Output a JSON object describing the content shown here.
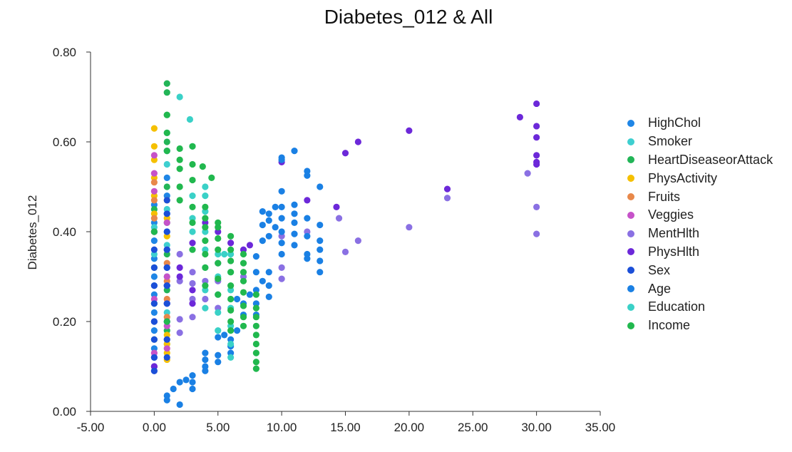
{
  "chart_data": {
    "type": "scatter",
    "title": "Diabetes_012 & All",
    "xlabel": "",
    "ylabel": "Diabetes_012",
    "xlim": [
      -5,
      35
    ],
    "ylim": [
      0,
      0.8
    ],
    "x_ticks": [
      "-5.00",
      "0.00",
      "5.00",
      "10.00",
      "15.00",
      "20.00",
      "25.00",
      "30.00",
      "35.00"
    ],
    "y_ticks": [
      "0.00",
      "0.20",
      "0.40",
      "0.60",
      "0.80"
    ],
    "legend_position": "right",
    "series": [
      {
        "name": "HighChol",
        "color": "#1f86e6",
        "points": [
          [
            0,
            0.1
          ],
          [
            0,
            0.14
          ],
          [
            0,
            0.18
          ],
          [
            0,
            0.22
          ],
          [
            0,
            0.26
          ],
          [
            0,
            0.3
          ],
          [
            0,
            0.34
          ],
          [
            0,
            0.38
          ],
          [
            0,
            0.42
          ],
          [
            0,
            0.46
          ],
          [
            1,
            0.2
          ],
          [
            1,
            0.24
          ],
          [
            1,
            0.28
          ],
          [
            1,
            0.32
          ],
          [
            1,
            0.36
          ],
          [
            1,
            0.4
          ],
          [
            1,
            0.44
          ],
          [
            1,
            0.48
          ],
          [
            1,
            0.52
          ],
          [
            1,
            0.58
          ]
        ]
      },
      {
        "name": "Smoker",
        "color": "#3ecfd0",
        "points": [
          [
            0,
            0.12
          ],
          [
            0,
            0.2
          ],
          [
            0,
            0.28
          ],
          [
            0,
            0.35
          ],
          [
            0,
            0.41
          ],
          [
            1,
            0.15
          ],
          [
            1,
            0.22
          ],
          [
            1,
            0.3
          ],
          [
            1,
            0.37
          ],
          [
            1,
            0.45
          ],
          [
            1,
            0.55
          ],
          [
            1,
            0.62
          ]
        ]
      },
      {
        "name": "HeartDiseaseorAttack",
        "color": "#22b557",
        "points": [
          [
            0,
            0.16
          ],
          [
            0,
            0.24
          ],
          [
            0,
            0.32
          ],
          [
            0,
            0.4
          ],
          [
            0,
            0.45
          ],
          [
            1,
            0.18
          ],
          [
            1,
            0.27
          ],
          [
            1,
            0.35
          ],
          [
            1,
            0.42
          ],
          [
            1,
            0.5
          ],
          [
            1,
            0.6
          ],
          [
            1,
            0.66
          ],
          [
            1,
            0.71
          ],
          [
            1,
            0.73
          ]
        ]
      },
      {
        "name": "PhysActivity",
        "color": "#f5c000",
        "points": [
          [
            0,
            0.4
          ],
          [
            0,
            0.44
          ],
          [
            0,
            0.48
          ],
          [
            0,
            0.52
          ],
          [
            0,
            0.56
          ],
          [
            0,
            0.59
          ],
          [
            0,
            0.63
          ],
          [
            1,
            0.115
          ],
          [
            1,
            0.13
          ],
          [
            1,
            0.15
          ],
          [
            1,
            0.17
          ],
          [
            1,
            0.39
          ],
          [
            1,
            0.43
          ],
          [
            1,
            0.47
          ]
        ]
      },
      {
        "name": "Fruits",
        "color": "#e8884a",
        "points": [
          [
            0,
            0.43
          ],
          [
            0,
            0.47
          ],
          [
            0,
            0.51
          ],
          [
            1,
            0.21
          ],
          [
            1,
            0.25
          ],
          [
            1,
            0.29
          ],
          [
            1,
            0.33
          ]
        ]
      },
      {
        "name": "Veggies",
        "color": "#c652c9",
        "points": [
          [
            0,
            0.1
          ],
          [
            0,
            0.13
          ],
          [
            0,
            0.25
          ],
          [
            0,
            0.4
          ],
          [
            0,
            0.49
          ],
          [
            0,
            0.53
          ],
          [
            0,
            0.57
          ],
          [
            1,
            0.14
          ],
          [
            1,
            0.19
          ],
          [
            1,
            0.24
          ],
          [
            1,
            0.3
          ],
          [
            1,
            0.36
          ],
          [
            1,
            0.42
          ]
        ]
      },
      {
        "name": "MentHlth",
        "color": "#8a70e3",
        "points": [
          [
            0,
            0.09
          ],
          [
            0,
            0.12
          ],
          [
            1,
            0.16
          ],
          [
            1,
            0.24
          ],
          [
            2,
            0.175
          ],
          [
            2,
            0.205
          ],
          [
            2,
            0.29
          ],
          [
            2,
            0.35
          ],
          [
            3,
            0.21
          ],
          [
            3,
            0.25
          ],
          [
            3,
            0.285
          ],
          [
            3,
            0.31
          ],
          [
            4,
            0.25
          ],
          [
            4,
            0.29
          ],
          [
            5,
            0.23
          ],
          [
            5,
            0.29
          ],
          [
            5,
            0.33
          ],
          [
            7,
            0.3
          ],
          [
            10,
            0.295
          ],
          [
            10,
            0.32
          ],
          [
            10,
            0.39
          ],
          [
            12,
            0.4
          ],
          [
            14.5,
            0.43
          ],
          [
            15,
            0.355
          ],
          [
            16,
            0.38
          ],
          [
            20,
            0.41
          ],
          [
            23,
            0.475
          ],
          [
            29.3,
            0.53
          ],
          [
            30,
            0.395
          ],
          [
            30,
            0.455
          ]
        ]
      },
      {
        "name": "PhysHlth",
        "color": "#6c28d9",
        "points": [
          [
            0,
            0.1
          ],
          [
            0,
            0.2
          ],
          [
            1,
            0.28
          ],
          [
            1,
            0.32
          ],
          [
            2,
            0.3
          ],
          [
            2,
            0.32
          ],
          [
            3,
            0.24
          ],
          [
            3,
            0.27
          ],
          [
            3,
            0.375
          ],
          [
            4,
            0.42
          ],
          [
            5,
            0.4
          ],
          [
            6,
            0.375
          ],
          [
            7,
            0.36
          ],
          [
            7.5,
            0.37
          ],
          [
            10,
            0.555
          ],
          [
            12,
            0.47
          ],
          [
            14.3,
            0.455
          ],
          [
            15,
            0.575
          ],
          [
            16,
            0.6
          ],
          [
            20,
            0.625
          ],
          [
            23,
            0.495
          ],
          [
            28.7,
            0.655
          ],
          [
            30,
            0.55
          ],
          [
            30,
            0.555
          ],
          [
            30,
            0.57
          ],
          [
            30,
            0.61
          ],
          [
            30,
            0.635
          ],
          [
            30,
            0.685
          ]
        ]
      },
      {
        "name": "Sex",
        "color": "#1b4fd8",
        "points": [
          [
            0,
            0.09
          ],
          [
            0,
            0.12
          ],
          [
            0,
            0.16
          ],
          [
            0,
            0.2
          ],
          [
            0,
            0.24
          ],
          [
            0,
            0.28
          ],
          [
            0,
            0.32
          ],
          [
            0,
            0.36
          ],
          [
            0,
            0.4
          ],
          [
            1,
            0.12
          ],
          [
            1,
            0.16
          ],
          [
            1,
            0.2
          ],
          [
            1,
            0.24
          ],
          [
            1,
            0.28
          ],
          [
            1,
            0.32
          ],
          [
            1,
            0.36
          ],
          [
            1,
            0.4
          ],
          [
            1,
            0.44
          ],
          [
            1,
            0.47
          ]
        ]
      },
      {
        "name": "Age",
        "color": "#1a80e4",
        "points": [
          [
            1,
            0.025
          ],
          [
            1,
            0.035
          ],
          [
            1.5,
            0.05
          ],
          [
            2,
            0.015
          ],
          [
            2,
            0.065
          ],
          [
            2.5,
            0.07
          ],
          [
            3,
            0.05
          ],
          [
            3,
            0.065
          ],
          [
            3,
            0.08
          ],
          [
            4,
            0.09
          ],
          [
            4,
            0.1
          ],
          [
            4,
            0.115
          ],
          [
            4,
            0.13
          ],
          [
            5,
            0.11
          ],
          [
            5,
            0.125
          ],
          [
            5,
            0.165
          ],
          [
            5.5,
            0.17
          ],
          [
            6,
            0.13
          ],
          [
            6,
            0.145
          ],
          [
            6,
            0.16
          ],
          [
            6.5,
            0.18
          ],
          [
            6.5,
            0.25
          ],
          [
            7,
            0.215
          ],
          [
            7,
            0.24
          ],
          [
            7.5,
            0.26
          ],
          [
            8,
            0.215
          ],
          [
            8,
            0.24
          ],
          [
            8,
            0.27
          ],
          [
            8,
            0.31
          ],
          [
            8,
            0.345
          ],
          [
            8.5,
            0.29
          ],
          [
            8.5,
            0.38
          ],
          [
            8.5,
            0.415
          ],
          [
            8.5,
            0.445
          ],
          [
            9,
            0.255
          ],
          [
            9,
            0.28
          ],
          [
            9,
            0.31
          ],
          [
            9,
            0.39
          ],
          [
            9,
            0.425
          ],
          [
            9,
            0.44
          ],
          [
            9.5,
            0.41
          ],
          [
            9.5,
            0.455
          ],
          [
            10,
            0.35
          ],
          [
            10,
            0.375
          ],
          [
            10,
            0.4
          ],
          [
            10,
            0.43
          ],
          [
            10,
            0.455
          ],
          [
            10,
            0.49
          ],
          [
            10,
            0.56
          ],
          [
            10,
            0.565
          ],
          [
            11,
            0.37
          ],
          [
            11,
            0.395
          ],
          [
            11,
            0.42
          ],
          [
            11,
            0.44
          ],
          [
            11,
            0.46
          ],
          [
            11,
            0.58
          ],
          [
            12,
            0.34
          ],
          [
            12,
            0.35
          ],
          [
            12,
            0.39
          ],
          [
            12,
            0.43
          ],
          [
            12,
            0.525
          ],
          [
            12,
            0.535
          ],
          [
            13,
            0.31
          ],
          [
            13,
            0.335
          ],
          [
            13,
            0.36
          ],
          [
            13,
            0.38
          ],
          [
            13,
            0.415
          ],
          [
            13,
            0.5
          ]
        ]
      },
      {
        "name": "Education",
        "color": "#3ad1c7",
        "points": [
          [
            2,
            0.7
          ],
          [
            2.8,
            0.65
          ],
          [
            3,
            0.4
          ],
          [
            3,
            0.43
          ],
          [
            3,
            0.48
          ],
          [
            3,
            0.59
          ],
          [
            4,
            0.23
          ],
          [
            4,
            0.27
          ],
          [
            4,
            0.32
          ],
          [
            4,
            0.36
          ],
          [
            4,
            0.4
          ],
          [
            4,
            0.445
          ],
          [
            4,
            0.48
          ],
          [
            4,
            0.5
          ],
          [
            5,
            0.18
          ],
          [
            5,
            0.22
          ],
          [
            5,
            0.26
          ],
          [
            5,
            0.3
          ],
          [
            5,
            0.35
          ],
          [
            5.5,
            0.35
          ],
          [
            6,
            0.12
          ],
          [
            6,
            0.15
          ],
          [
            6,
            0.19
          ],
          [
            6,
            0.23
          ],
          [
            6,
            0.27
          ],
          [
            6,
            0.31
          ],
          [
            6,
            0.35
          ]
        ]
      },
      {
        "name": "Income",
        "color": "#21b84e",
        "points": [
          [
            0,
            0.4
          ],
          [
            1,
            0.2
          ],
          [
            1,
            0.58
          ],
          [
            1,
            0.62
          ],
          [
            1,
            0.66
          ],
          [
            2,
            0.47
          ],
          [
            2,
            0.5
          ],
          [
            2,
            0.54
          ],
          [
            2,
            0.56
          ],
          [
            2,
            0.585
          ],
          [
            3,
            0.36
          ],
          [
            3,
            0.42
          ],
          [
            3,
            0.455
          ],
          [
            3,
            0.515
          ],
          [
            3,
            0.55
          ],
          [
            3,
            0.59
          ],
          [
            3.8,
            0.545
          ],
          [
            4,
            0.28
          ],
          [
            4,
            0.32
          ],
          [
            4,
            0.35
          ],
          [
            4,
            0.38
          ],
          [
            4,
            0.41
          ],
          [
            4,
            0.43
          ],
          [
            4,
            0.455
          ],
          [
            4.5,
            0.52
          ],
          [
            5,
            0.26
          ],
          [
            5,
            0.295
          ],
          [
            5,
            0.33
          ],
          [
            5,
            0.36
          ],
          [
            5,
            0.385
          ],
          [
            5,
            0.41
          ],
          [
            5,
            0.42
          ],
          [
            6,
            0.18
          ],
          [
            6,
            0.2
          ],
          [
            6,
            0.225
          ],
          [
            6,
            0.25
          ],
          [
            6,
            0.28
          ],
          [
            6,
            0.31
          ],
          [
            6,
            0.335
          ],
          [
            6,
            0.36
          ],
          [
            6,
            0.39
          ],
          [
            7,
            0.19
          ],
          [
            7,
            0.21
          ],
          [
            7,
            0.235
          ],
          [
            7,
            0.265
          ],
          [
            7,
            0.29
          ],
          [
            7,
            0.31
          ],
          [
            7,
            0.33
          ],
          [
            7,
            0.35
          ],
          [
            8,
            0.095
          ],
          [
            8,
            0.11
          ],
          [
            8,
            0.13
          ],
          [
            8,
            0.15
          ],
          [
            8,
            0.17
          ],
          [
            8,
            0.19
          ],
          [
            8,
            0.21
          ],
          [
            8,
            0.23
          ],
          [
            8,
            0.26
          ]
        ]
      }
    ]
  }
}
